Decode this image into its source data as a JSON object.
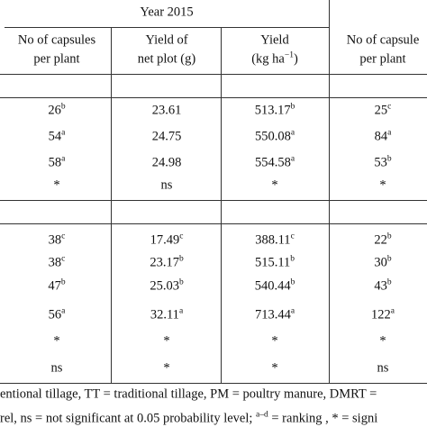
{
  "header": {
    "year": "Year 2015",
    "columns": [
      {
        "line1": {
          "t": "No of capsules"
        },
        "line2": {
          "t": "per plant"
        }
      },
      {
        "line1": {
          "t": "Yield of"
        },
        "line2": {
          "t": "net plot (g)"
        }
      },
      {
        "line1": {
          "t": "Yield"
        },
        "line2": {
          "t": "(kg ha",
          "s": "−1",
          "after": ")"
        }
      },
      {
        "line1": {
          "t": "No of capsule"
        },
        "line2": {
          "t": "per plant"
        }
      }
    ]
  },
  "sections": [
    {
      "rows": [
        [
          {
            "t": "26",
            "s": "b"
          },
          {
            "t": "23.61"
          },
          {
            "t": "513.17",
            "s": "b"
          },
          {
            "t": "25",
            "s": "c"
          }
        ],
        [
          {
            "t": "54",
            "s": "a"
          },
          {
            "t": "24.75"
          },
          {
            "t": "550.08",
            "s": "a"
          },
          {
            "t": "84",
            "s": "a"
          }
        ],
        [
          {
            "t": "58",
            "s": "a"
          },
          {
            "t": "24.98"
          },
          {
            "t": "554.58",
            "s": "a"
          },
          {
            "t": "53",
            "s": "b"
          }
        ],
        [
          {
            "t": "*"
          },
          {
            "t": "ns"
          },
          {
            "t": "*"
          },
          {
            "t": "*"
          }
        ]
      ]
    },
    {
      "rows": [
        [
          {
            "t": "38",
            "s": "c"
          },
          {
            "t": "17.49",
            "s": "c"
          },
          {
            "t": "388.11",
            "s": "c"
          },
          {
            "t": "22",
            "s": "b"
          }
        ],
        [
          {
            "t": "38",
            "s": "c"
          },
          {
            "t": "23.17",
            "s": "b"
          },
          {
            "t": "515.11",
            "s": "b"
          },
          {
            "t": "30",
            "s": "b"
          }
        ],
        [
          {
            "t": "47",
            "s": "b"
          },
          {
            "t": "25.03",
            "s": "b"
          },
          {
            "t": "540.44",
            "s": "b"
          },
          {
            "t": "43",
            "s": "b"
          }
        ],
        [
          {
            "t": "56",
            "s": "a"
          },
          {
            "t": "32.11",
            "s": "a"
          },
          {
            "t": "713.44",
            "s": "a"
          },
          {
            "t": "122",
            "s": "a"
          }
        ],
        [
          {
            "t": "*"
          },
          {
            "t": "*"
          },
          {
            "t": "*"
          },
          {
            "t": "*"
          }
        ],
        [
          {
            "t": "ns"
          },
          {
            "t": "*"
          },
          {
            "t": "*"
          },
          {
            "t": "ns"
          }
        ]
      ]
    }
  ],
  "footnotes": [
    {
      "t": "entional tillage, TT = traditional tillage, PM = poultry manure, DMRT ="
    },
    {
      "t": "rel, ns = not significant at 0.05 probability level; ",
      "s": "a–d",
      "after": " = ranking , * = signi"
    }
  ]
}
